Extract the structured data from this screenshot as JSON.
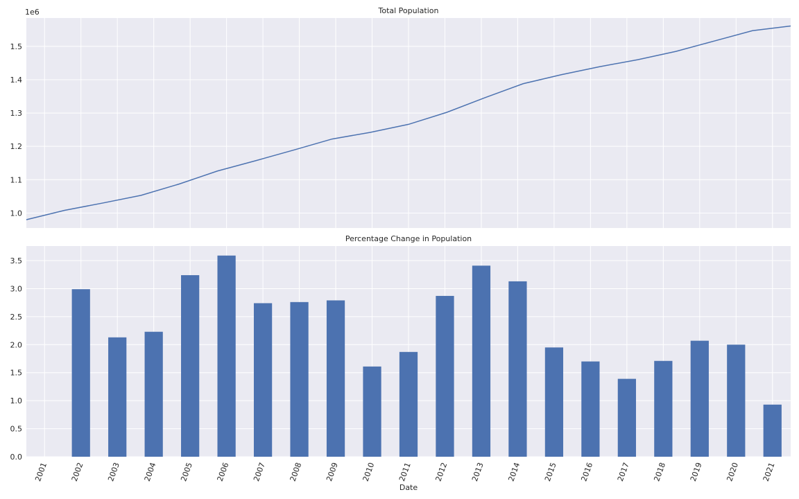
{
  "chart_data": [
    {
      "type": "line",
      "title": "Total Population",
      "xlabel": "",
      "ylabel": "",
      "y_offset_label": "1e6",
      "grid": true,
      "x": [
        "2001",
        "2002",
        "2003",
        "2004",
        "2005",
        "2006",
        "2007",
        "2008",
        "2009",
        "2010",
        "2011",
        "2012",
        "2013",
        "2014",
        "2015",
        "2016",
        "2017",
        "2018",
        "2019",
        "2020",
        "2021"
      ],
      "series": [
        {
          "values": [
            0.98,
            1.008,
            1.03,
            1.053,
            1.087,
            1.126,
            1.157,
            1.189,
            1.222,
            1.242,
            1.266,
            1.302,
            1.346,
            1.388,
            1.415,
            1.439,
            1.46,
            1.485,
            1.516,
            1.547,
            1.561
          ],
          "color": "#4c72b0"
        }
      ],
      "ylim": [
        0.955,
        1.585
      ],
      "yticks": [
        1.0,
        1.1,
        1.2,
        1.3,
        1.4,
        1.5
      ],
      "ytick_labels": [
        "1.0",
        "1.1",
        "1.2",
        "1.3",
        "1.4",
        "1.5"
      ]
    },
    {
      "type": "bar",
      "title": "Percentage Change in Population",
      "xlabel": "Date",
      "ylabel": "",
      "grid": true,
      "categories": [
        "2001",
        "2002",
        "2003",
        "2004",
        "2005",
        "2006",
        "2007",
        "2008",
        "2009",
        "2010",
        "2011",
        "2012",
        "2013",
        "2014",
        "2015",
        "2016",
        "2017",
        "2018",
        "2019",
        "2020",
        "2021"
      ],
      "values": [
        null,
        2.99,
        2.13,
        2.23,
        3.24,
        3.59,
        2.74,
        2.76,
        2.79,
        1.61,
        1.87,
        2.87,
        3.41,
        3.13,
        1.95,
        1.7,
        1.39,
        1.71,
        2.07,
        2.0,
        0.93
      ],
      "color": "#4c72b0",
      "ylim": [
        0,
        3.76
      ],
      "yticks": [
        0,
        0.5,
        1.0,
        1.5,
        2.0,
        2.5,
        3.0,
        3.5
      ],
      "ytick_labels": [
        "0.0",
        "0.5",
        "1.0",
        "1.5",
        "2.0",
        "2.5",
        "3.0",
        "3.5"
      ]
    }
  ]
}
